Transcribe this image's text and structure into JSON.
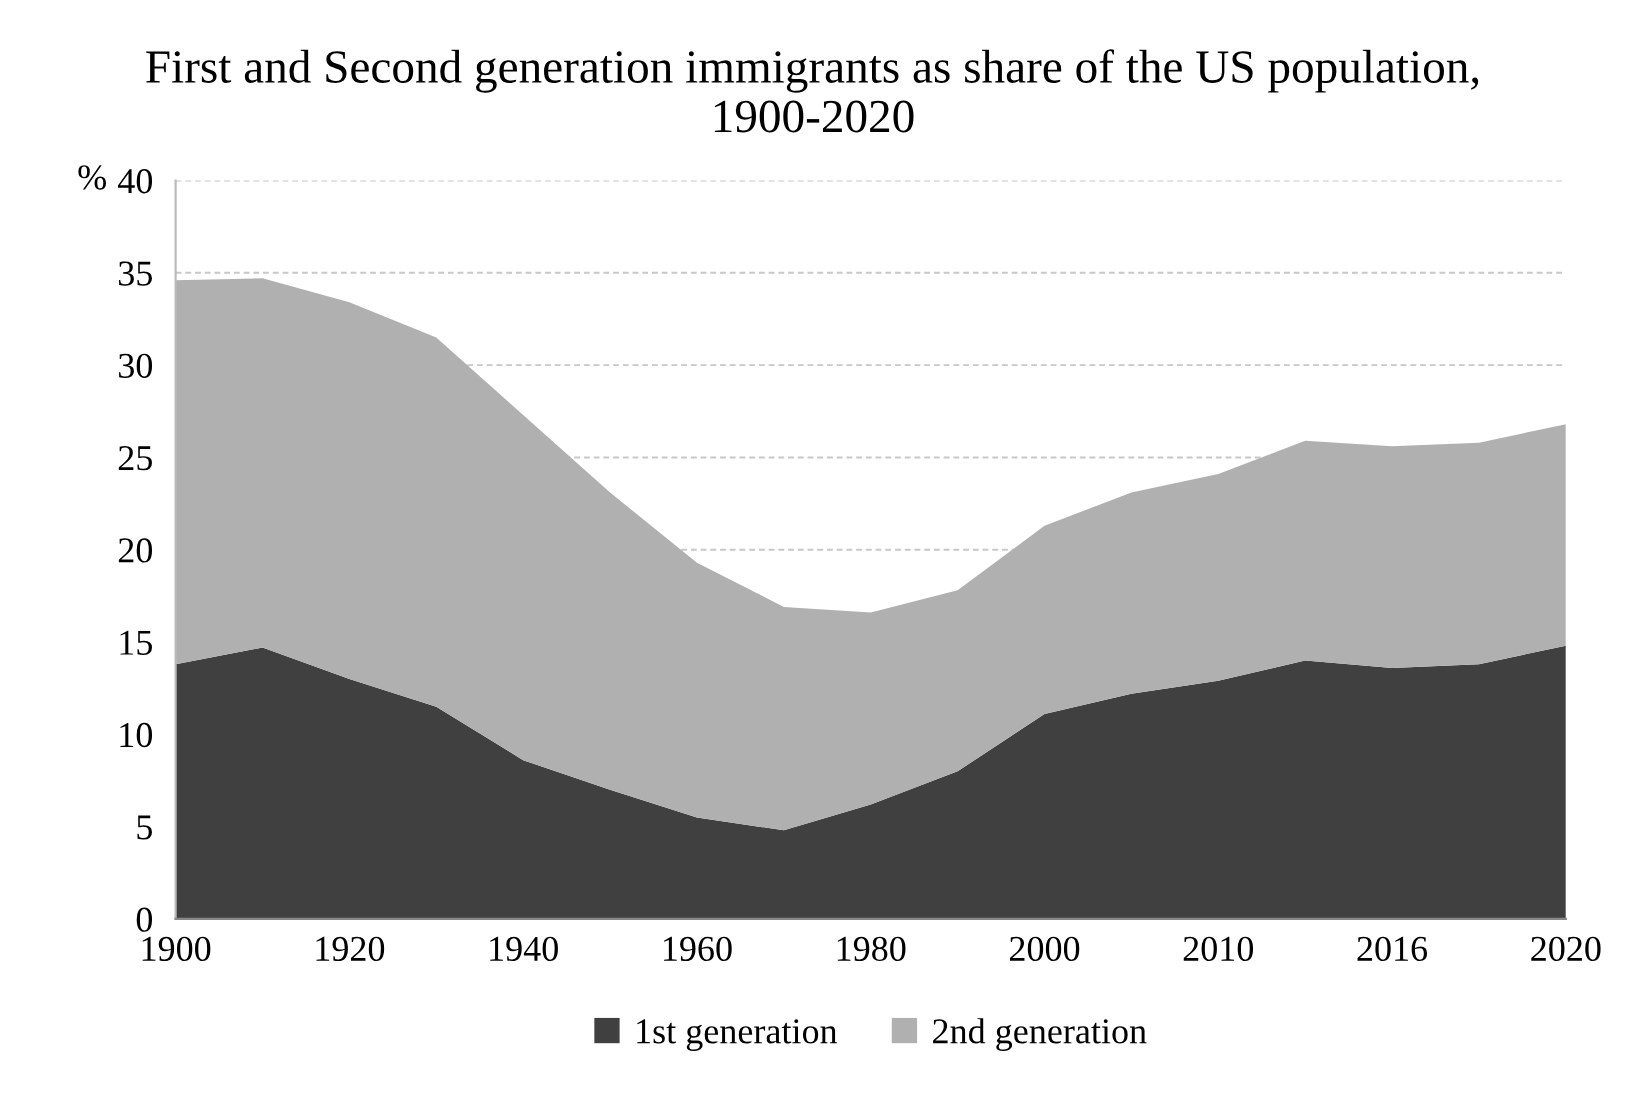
{
  "chart_data": {
    "type": "area",
    "stacked": true,
    "title": "First and Second generation immigrants as share of the US population,\n1900-2020",
    "ylabel": "%",
    "categories": [
      "1900",
      null,
      "1920",
      null,
      "1940",
      null,
      "1960",
      null,
      "1980",
      null,
      "2000",
      null,
      "2010",
      null,
      "2016",
      null,
      "2020"
    ],
    "series": [
      {
        "name": "1st generation",
        "color": "#404040",
        "values": [
          13.8,
          14.7,
          13.0,
          11.5,
          8.6,
          7.0,
          5.5,
          4.8,
          6.2,
          8.0,
          11.1,
          12.2,
          12.9,
          14.0,
          13.6,
          13.8,
          14.8
        ]
      },
      {
        "name": "2nd generation",
        "color": "#b0b0b0",
        "values": [
          20.8,
          20.0,
          20.4,
          20.0,
          18.7,
          16.1,
          13.8,
          12.1,
          10.4,
          9.8,
          10.2,
          10.9,
          11.2,
          11.9,
          12.0,
          12.0,
          12.0
        ]
      }
    ],
    "ylim": [
      0,
      40
    ],
    "yticks": [
      0,
      5,
      10,
      15,
      20,
      25,
      30,
      35,
      40
    ],
    "grid": "y",
    "legend": "bottom"
  }
}
